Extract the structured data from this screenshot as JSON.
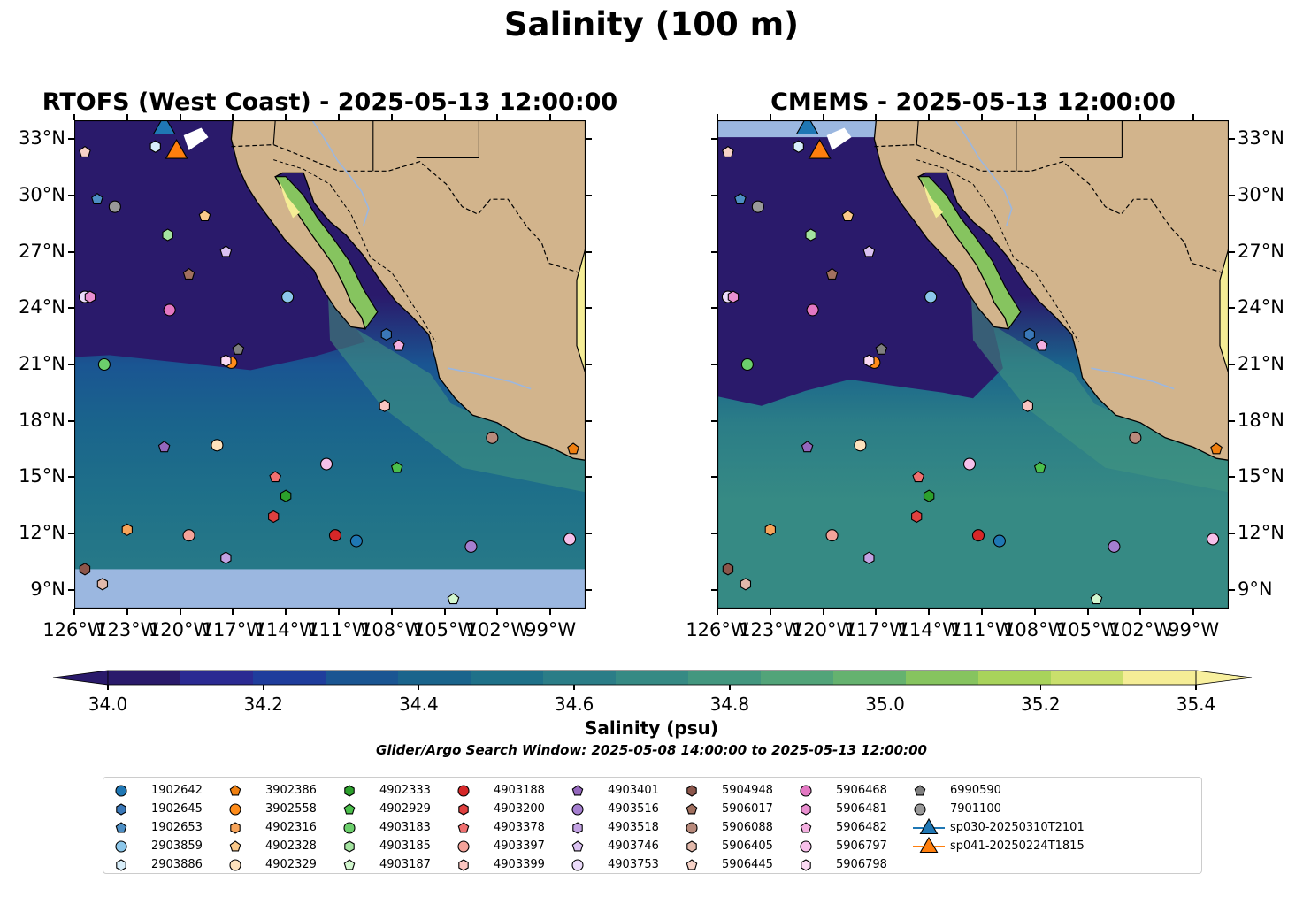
{
  "title": "Salinity (100 m)",
  "panels": [
    {
      "title": "RTOFS (West Coast) - 2025-05-13 12:00:00",
      "lat_labels_side": "left"
    },
    {
      "title": "CMEMS - 2025-05-13 12:00:00",
      "lat_labels_side": "right"
    }
  ],
  "lat_ticks": [
    "33°N",
    "30°N",
    "27°N",
    "24°N",
    "21°N",
    "18°N",
    "15°N",
    "12°N",
    "9°N"
  ],
  "lon_ticks": [
    "126°W",
    "123°W",
    "120°W",
    "117°W",
    "114°W",
    "111°W",
    "108°W",
    "105°W",
    "102°W",
    "99°W"
  ],
  "colorbar": {
    "label": "Salinity (psu)",
    "ticks": [
      "34.0",
      "34.2",
      "34.4",
      "34.6",
      "34.8",
      "35.0",
      "35.2",
      "35.4"
    ],
    "colors": [
      "#2a1a6b",
      "#2b2a92",
      "#1f3d9c",
      "#1a5592",
      "#1a648c",
      "#1f7189",
      "#2b7d87",
      "#368a84",
      "#43977f",
      "#52a479",
      "#65b26f",
      "#86c45f",
      "#a8d35b",
      "#c9df6c",
      "#f5ed96"
    ],
    "under_color": "#2a1a6b",
    "over_color": "#f8f09e"
  },
  "window_note": "Glider/Argo Search Window: 2025-05-08 14:00:00 to 2025-05-13 12:00:00",
  "colors": {
    "land": "#d2b48c",
    "no_data": "#9bb7e0",
    "deep": "#2a1a6b"
  },
  "chart_data": {
    "type": "map",
    "variable": "Salinity (psu)",
    "depth": "100 m",
    "lon_range": [
      -126,
      -97
    ],
    "lat_range": [
      8,
      34
    ],
    "color_range": [
      34.0,
      35.4
    ],
    "floats": [
      {
        "id": "1902642",
        "lon": -110.0,
        "lat": 11.6,
        "marker": "circle",
        "color": "#1f77b4"
      },
      {
        "id": "1902645",
        "lon": -108.3,
        "lat": 22.6,
        "marker": "hexagon",
        "color": "#3a78b8"
      },
      {
        "id": "1902653",
        "lon": -124.7,
        "lat": 29.8,
        "marker": "pentagon",
        "color": "#4d8ec4"
      },
      {
        "id": "2903859",
        "lon": -113.9,
        "lat": 24.6,
        "marker": "circle",
        "color": "#8cc7ea"
      },
      {
        "id": "2903886",
        "lon": -121.4,
        "lat": 32.6,
        "marker": "hexagon",
        "color": "#d8eefa"
      },
      {
        "id": "3902386",
        "lon": -97.7,
        "lat": 16.5,
        "marker": "pentagon",
        "color": "#f07f0f"
      },
      {
        "id": "3902558",
        "lon": -117.1,
        "lat": 21.1,
        "marker": "circle",
        "color": "#ff8c1a"
      },
      {
        "id": "4902316",
        "lon": -123.0,
        "lat": 12.2,
        "marker": "hexagon",
        "color": "#f7a45a"
      },
      {
        "id": "4902328",
        "lon": -118.6,
        "lat": 28.9,
        "marker": "pentagon",
        "color": "#fbc98a"
      },
      {
        "id": "4902329",
        "lon": -117.9,
        "lat": 16.7,
        "marker": "circle",
        "color": "#fde2bd"
      },
      {
        "id": "4902333",
        "lon": -114.0,
        "lat": 14.0,
        "marker": "hexagon",
        "color": "#2ca02c"
      },
      {
        "id": "4902929",
        "lon": -107.7,
        "lat": 15.5,
        "marker": "pentagon",
        "color": "#4bbf4b"
      },
      {
        "id": "4903183",
        "lon": -124.3,
        "lat": 21.0,
        "marker": "circle",
        "color": "#6ccf6c"
      },
      {
        "id": "4903185",
        "lon": -120.7,
        "lat": 27.9,
        "marker": "hexagon",
        "color": "#a4e3a0"
      },
      {
        "id": "4903187",
        "lon": -104.5,
        "lat": 8.5,
        "marker": "pentagon",
        "color": "#d3f7cf"
      },
      {
        "id": "4903188",
        "lon": -111.2,
        "lat": 11.9,
        "marker": "circle",
        "color": "#d62728"
      },
      {
        "id": "4903200",
        "lon": -114.7,
        "lat": 12.9,
        "marker": "hexagon",
        "color": "#e0403f"
      },
      {
        "id": "4903378",
        "lon": -114.6,
        "lat": 15.0,
        "marker": "pentagon",
        "color": "#f07070"
      },
      {
        "id": "4903397",
        "lon": -119.5,
        "lat": 11.9,
        "marker": "circle",
        "color": "#f4a39a"
      },
      {
        "id": "4903399",
        "lon": -108.4,
        "lat": 18.8,
        "marker": "hexagon",
        "color": "#fbc5c0"
      },
      {
        "id": "4903401",
        "lon": -120.9,
        "lat": 16.6,
        "marker": "pentagon",
        "color": "#9467bd"
      },
      {
        "id": "4903516",
        "lon": -103.5,
        "lat": 11.3,
        "marker": "circle",
        "color": "#a57fd0"
      },
      {
        "id": "4903518",
        "lon": -117.4,
        "lat": 10.7,
        "marker": "hexagon",
        "color": "#c3a2e3"
      },
      {
        "id": "4903746",
        "lon": -117.4,
        "lat": 27.0,
        "marker": "pentagon",
        "color": "#dbc2f2"
      },
      {
        "id": "4903753",
        "lon": -125.4,
        "lat": 24.6,
        "marker": "circle",
        "color": "#ecdcfa"
      },
      {
        "id": "5904948",
        "lon": -125.4,
        "lat": 10.1,
        "marker": "hexagon",
        "color": "#8c564b"
      },
      {
        "id": "5906017",
        "lon": -119.5,
        "lat": 25.8,
        "marker": "pentagon",
        "color": "#a1705f"
      },
      {
        "id": "5906088",
        "lon": -102.3,
        "lat": 17.1,
        "marker": "circle",
        "color": "#b88a7c"
      },
      {
        "id": "5906405",
        "lon": -124.4,
        "lat": 9.3,
        "marker": "hexagon",
        "color": "#e2b9ab"
      },
      {
        "id": "5906445",
        "lon": -125.4,
        "lat": 32.3,
        "marker": "pentagon",
        "color": "#f6d2c7"
      },
      {
        "id": "5906468",
        "lon": -120.6,
        "lat": 23.9,
        "marker": "circle",
        "color": "#e377c2"
      },
      {
        "id": "5906481",
        "lon": -125.1,
        "lat": 24.6,
        "marker": "hexagon",
        "color": "#e98fd0"
      },
      {
        "id": "5906482",
        "lon": -107.6,
        "lat": 22.0,
        "marker": "pentagon",
        "color": "#f4afe0"
      },
      {
        "id": "5906797",
        "lon": -111.7,
        "lat": 15.7,
        "marker": "circle",
        "color": "#f7c0ea"
      },
      {
        "id": "5906798",
        "lon": -117.4,
        "lat": 21.2,
        "marker": "hexagon",
        "color": "#fbd9f3"
      },
      {
        "id": "6990590",
        "lon": -116.7,
        "lat": 21.8,
        "marker": "pentagon",
        "color": "#7f7f7f"
      },
      {
        "id": "7901100",
        "lon": -123.7,
        "lat": 29.4,
        "marker": "circle",
        "color": "#999999"
      },
      {
        "id": "",
        "lon": -97.9,
        "lat": 11.7,
        "marker": "circle",
        "color": "#f7c0ea"
      }
    ],
    "gliders": [
      {
        "id": "sp030-20250310T2101",
        "lon": -120.9,
        "lat": 33.6,
        "marker": "triangle",
        "color": "#1f77b4"
      },
      {
        "id": "sp041-20250224T1815",
        "lon": -120.2,
        "lat": 32.3,
        "marker": "triangle",
        "color": "#ff7f0e"
      }
    ]
  },
  "legend": [
    {
      "label": "1902642",
      "marker": "circle",
      "color": "#1f77b4"
    },
    {
      "label": "1902645",
      "marker": "hexagon",
      "color": "#3a78b8"
    },
    {
      "label": "1902653",
      "marker": "pentagon",
      "color": "#4d8ec4"
    },
    {
      "label": "2903859",
      "marker": "circle",
      "color": "#8cc7ea"
    },
    {
      "label": "2903886",
      "marker": "hexagon",
      "color": "#d8eefa"
    },
    {
      "label": "3902386",
      "marker": "pentagon",
      "color": "#f07f0f"
    },
    {
      "label": "3902558",
      "marker": "circle",
      "color": "#ff8c1a"
    },
    {
      "label": "4902316",
      "marker": "hexagon",
      "color": "#f7a45a"
    },
    {
      "label": "4902328",
      "marker": "pentagon",
      "color": "#fbc98a"
    },
    {
      "label": "4902329",
      "marker": "circle",
      "color": "#fde2bd"
    },
    {
      "label": "4902333",
      "marker": "hexagon",
      "color": "#2ca02c"
    },
    {
      "label": "4902929",
      "marker": "pentagon",
      "color": "#4bbf4b"
    },
    {
      "label": "4903183",
      "marker": "circle",
      "color": "#6ccf6c"
    },
    {
      "label": "4903185",
      "marker": "hexagon",
      "color": "#a4e3a0"
    },
    {
      "label": "4903187",
      "marker": "pentagon",
      "color": "#d3f7cf"
    },
    {
      "label": "4903188",
      "marker": "circle",
      "color": "#d62728"
    },
    {
      "label": "4903200",
      "marker": "hexagon",
      "color": "#e0403f"
    },
    {
      "label": "4903378",
      "marker": "pentagon",
      "color": "#f07070"
    },
    {
      "label": "4903397",
      "marker": "circle",
      "color": "#f4a39a"
    },
    {
      "label": "4903399",
      "marker": "hexagon",
      "color": "#fbc5c0"
    },
    {
      "label": "4903401",
      "marker": "pentagon",
      "color": "#9467bd"
    },
    {
      "label": "4903516",
      "marker": "circle",
      "color": "#a57fd0"
    },
    {
      "label": "4903518",
      "marker": "hexagon",
      "color": "#c3a2e3"
    },
    {
      "label": "4903746",
      "marker": "pentagon",
      "color": "#dbc2f2"
    },
    {
      "label": "4903753",
      "marker": "circle",
      "color": "#ecdcfa"
    },
    {
      "label": "5904948",
      "marker": "hexagon",
      "color": "#8c564b"
    },
    {
      "label": "5906017",
      "marker": "pentagon",
      "color": "#a1705f"
    },
    {
      "label": "5906088",
      "marker": "circle",
      "color": "#b88a7c"
    },
    {
      "label": "5906405",
      "marker": "hexagon",
      "color": "#e2b9ab"
    },
    {
      "label": "5906445",
      "marker": "pentagon",
      "color": "#f6d2c7"
    },
    {
      "label": "5906468",
      "marker": "circle",
      "color": "#e377c2"
    },
    {
      "label": "5906481",
      "marker": "hexagon",
      "color": "#e98fd0"
    },
    {
      "label": "5906482",
      "marker": "pentagon",
      "color": "#f4afe0"
    },
    {
      "label": "5906797",
      "marker": "circle",
      "color": "#f7c0ea"
    },
    {
      "label": "5906798",
      "marker": "hexagon",
      "color": "#fbd9f3"
    },
    {
      "label": "6990590",
      "marker": "pentagon",
      "color": "#7f7f7f"
    },
    {
      "label": "7901100",
      "marker": "circle",
      "color": "#999999"
    },
    {
      "label": "sp030-20250310T2101",
      "marker": "triangle",
      "color": "#1f77b4"
    },
    {
      "label": "sp041-20250224T1815",
      "marker": "triangle",
      "color": "#ff7f0e"
    }
  ]
}
